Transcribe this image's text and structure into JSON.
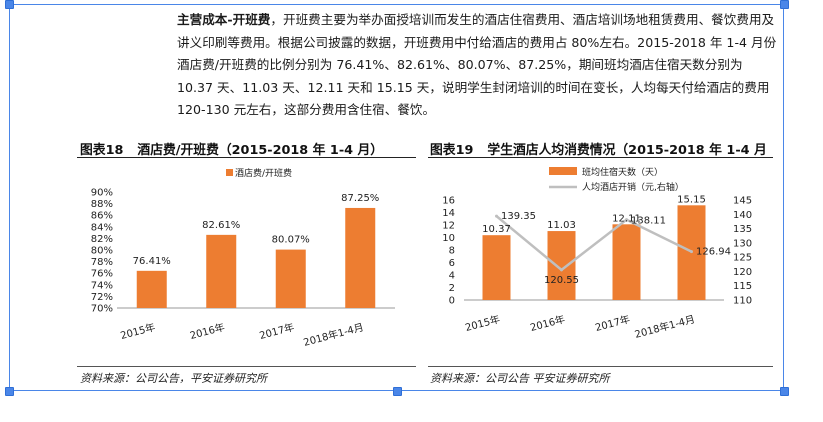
{
  "paragraph": {
    "lead": "主营成本-开班费",
    "body": "，开班费主要为举办面授培训而发生的酒店住宿费用、酒店培训场地租赁费用、餐饮费用及讲义印刷等费用。根据公司披露的数据，开班费用中付给酒店的费用占 80%左右。2015-2018 年 1-4 月份酒店费/开班费的比例分别为 76.41%、82.61%、80.07%、87.25%，期间班均酒店住宿天数分别为 10.37 天、11.03 天、12.11 天和 15.15 天，说明学生封闭培训的时间在变长，人均每天付给酒店的费用 120-130 元左右，这部分费用含住宿、餐饮。"
  },
  "figure18": {
    "number": "图表18",
    "title": "酒店费/开班费（2015-2018 年 1-4 月）",
    "source": "资料来源：公司公告，平安证券研究所"
  },
  "figure19": {
    "number": "图表19",
    "title": "学生酒店人均消费情况（2015-2018 年 1-4 月",
    "source": "资料来源：公司公告 平安证券研究所"
  },
  "colors": {
    "bar": "#ed7d31",
    "line": "#bfbfbf",
    "frame": "#4a86e8"
  },
  "chart_data": [
    {
      "type": "bar",
      "title": "酒店费/开班费（2015-2018 年 1-4 月）",
      "legend": "酒店费/开班费",
      "categories": [
        "2015年",
        "2016年",
        "2017年",
        "2018年1-4月"
      ],
      "values": [
        76.41,
        82.61,
        80.07,
        87.25
      ],
      "value_labels": [
        "76.41%",
        "82.61%",
        "80.07%",
        "87.25%"
      ],
      "ylim": [
        70,
        90
      ],
      "yticks": [
        "70%",
        "72%",
        "74%",
        "76%",
        "78%",
        "80%",
        "82%",
        "84%",
        "86%",
        "88%",
        "90%"
      ]
    },
    {
      "type": "bar+line",
      "title": "学生酒店人均消费情况（2015-2018 年 1-4 月",
      "categories": [
        "2015年",
        "2016年",
        "2017年",
        "2018年1-4月"
      ],
      "series": [
        {
          "name": "班均住宿天数（天）",
          "type": "bar",
          "axis": "left",
          "values": [
            10.37,
            11.03,
            12.11,
            15.15
          ],
          "labels": [
            "10.37",
            "11.03",
            "12.11",
            "15.15"
          ]
        },
        {
          "name": "人均酒店开销（元,右轴）",
          "type": "line",
          "axis": "right",
          "values": [
            139.35,
            120.55,
            138.11,
            126.94
          ],
          "labels": [
            "139.35",
            "120.55",
            "138.11",
            "126.94"
          ]
        }
      ],
      "ylim_left": [
        0,
        16
      ],
      "yticks_left": [
        "0",
        "2",
        "4",
        "6",
        "8",
        "10",
        "12",
        "14",
        "16"
      ],
      "ylim_right": [
        110,
        145
      ],
      "yticks_right": [
        "110",
        "115",
        "120",
        "125",
        "130",
        "135",
        "140",
        "145"
      ]
    }
  ]
}
